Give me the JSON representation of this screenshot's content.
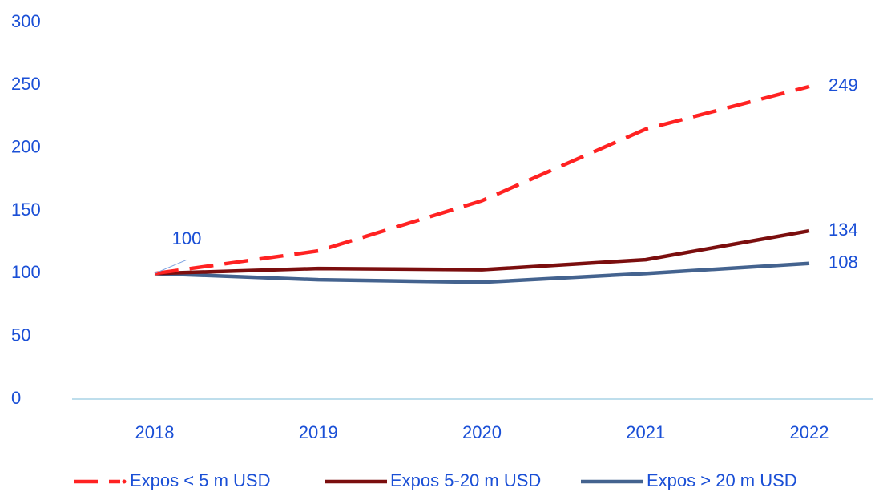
{
  "chart_data": {
    "type": "line",
    "categories": [
      "2018",
      "2019",
      "2020",
      "2021",
      "2022"
    ],
    "series": [
      {
        "name": "Expos < 5 m USD",
        "color": "#ff2222",
        "dashed": true,
        "values": [
          100,
          118,
          158,
          215,
          249
        ]
      },
      {
        "name": "Expos 5-20 m USD",
        "color": "#7b0e0e",
        "dashed": false,
        "values": [
          100,
          104,
          103,
          111,
          134
        ]
      },
      {
        "name": "Expos > 20 m USD",
        "color": "#44638f",
        "dashed": false,
        "values": [
          100,
          95,
          93,
          100,
          108
        ]
      }
    ],
    "ylim": [
      0,
      300
    ],
    "yticks": [
      0,
      50,
      100,
      150,
      200,
      250,
      300
    ],
    "grid": false,
    "legend": "bottom"
  }
}
